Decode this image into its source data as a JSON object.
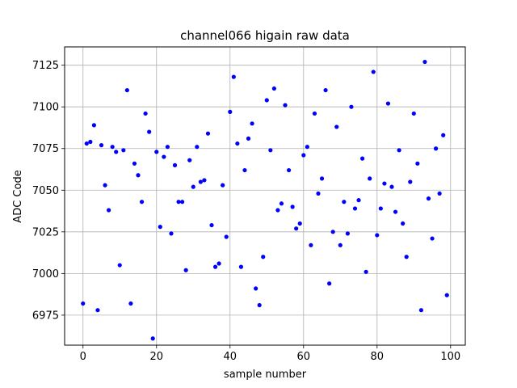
{
  "chart_data": {
    "type": "scatter",
    "title": "channel066 higain raw data",
    "xlabel": "sample number",
    "ylabel": "ADC Code",
    "xlim": [
      -5,
      104
    ],
    "ylim": [
      6957,
      7136
    ],
    "xticks": [
      0,
      20,
      40,
      60,
      80,
      100
    ],
    "yticks": [
      6975,
      7000,
      7025,
      7050,
      7075,
      7100,
      7125
    ],
    "grid": true,
    "legend": "none",
    "marker_color": "#0000ff",
    "series": [
      {
        "x": [
          0,
          1,
          2,
          3,
          4,
          5,
          6,
          7,
          8,
          9,
          10,
          11,
          12,
          13,
          14,
          15,
          16,
          17,
          18,
          19,
          20,
          21,
          22,
          23,
          24,
          25,
          26,
          27,
          28,
          29,
          30,
          31,
          32,
          33,
          34,
          35,
          36,
          37,
          38,
          39,
          40,
          41,
          42,
          43,
          44,
          45,
          46,
          47,
          48,
          49,
          50,
          51,
          52,
          53,
          54,
          55,
          56,
          57,
          58,
          59,
          60,
          61,
          62,
          63,
          64,
          65,
          66,
          67,
          68,
          69,
          70,
          71,
          72,
          73,
          74,
          75,
          76,
          77,
          78,
          79,
          80,
          81,
          82,
          83,
          84,
          85,
          86,
          87,
          88,
          89,
          90,
          91,
          92,
          93,
          94,
          95,
          96,
          97,
          98,
          99
        ],
        "y": [
          6982,
          7078,
          7079,
          7089,
          6978,
          7077,
          7053,
          7038,
          7076,
          7073,
          7005,
          7074,
          7110,
          6982,
          7066,
          7059,
          7043,
          7096,
          7085,
          6961,
          7073,
          7028,
          7070,
          7076,
          7024,
          7065,
          7043,
          7043,
          7002,
          7068,
          7052,
          7076,
          7055,
          7056,
          7084,
          7029,
          7004,
          7006,
          7053,
          7022,
          7097,
          7118,
          7078,
          7004,
          7062,
          7081,
          7090,
          6991,
          6981,
          7010,
          7104,
          7074,
          7111,
          7038,
          7042,
          7101,
          7062,
          7040,
          7027,
          7030,
          7071,
          7076,
          7017,
          7096,
          7048,
          7057,
          7110,
          6994,
          7025,
          7088,
          7017,
          7043,
          7024,
          7100,
          7039,
          7044,
          7069,
          7001,
          7057,
          7121,
          7023,
          7039,
          7054,
          7102,
          7052,
          7037,
          7074,
          7030,
          7010,
          7055,
          7096,
          7066,
          6978,
          7127,
          7045,
          7021,
          7075,
          7048,
          7083,
          6987
        ]
      }
    ]
  }
}
